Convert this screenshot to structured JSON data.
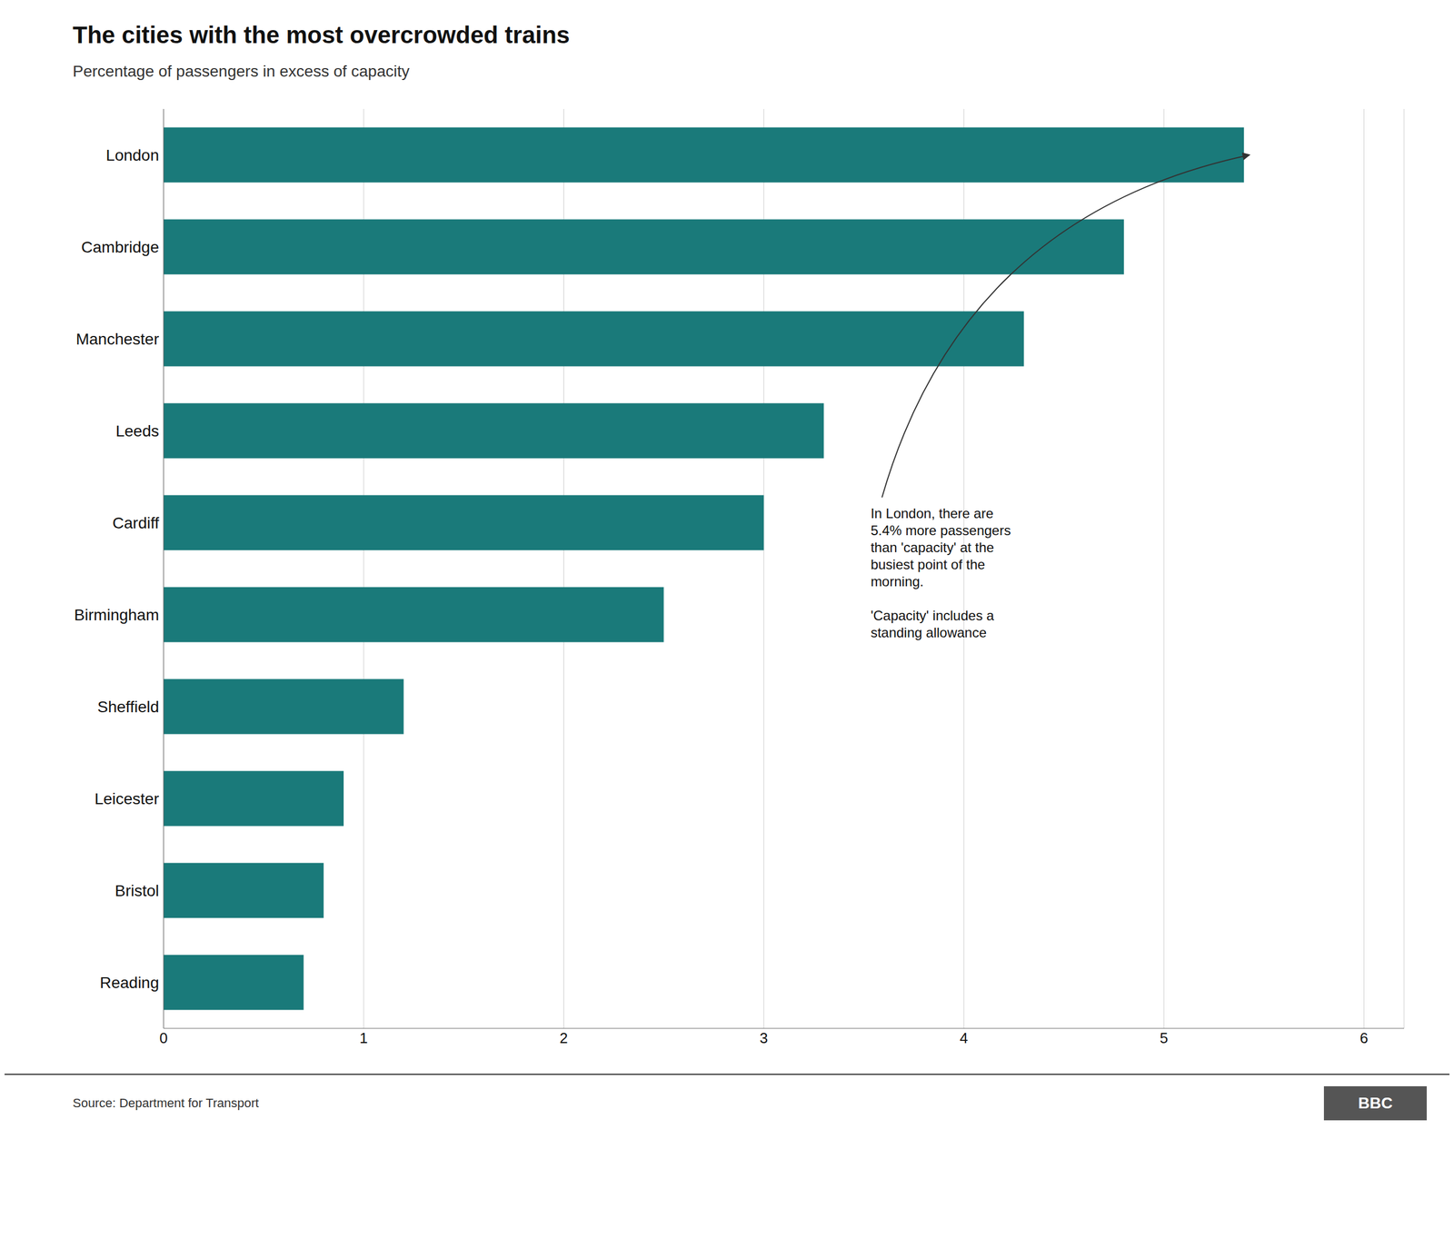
{
  "chart_data": {
    "type": "bar",
    "orientation": "horizontal",
    "title": "The cities with the most overcrowded trains",
    "subtitle": "Percentage of passengers in excess of capacity",
    "categories": [
      "London",
      "Cambridge",
      "Manchester",
      "Leeds",
      "Cardiff",
      "Birmingham",
      "Sheffield",
      "Leicester",
      "Bristol",
      "Reading"
    ],
    "values": [
      5.4,
      4.8,
      4.3,
      3.3,
      3.0,
      2.5,
      1.2,
      0.9,
      0.8,
      0.7
    ],
    "color": "#1a7a7a",
    "xlim": [
      0,
      6.2
    ],
    "xticks": [
      0,
      1,
      2,
      3,
      4,
      5,
      6
    ],
    "grid": true,
    "annotations": [
      "In London, there are\n5.4% more passengers\nthan 'capacity' at the\nbusiest point of the\nmorning.\n\n'Capacity' includes a\nstanding allowance"
    ],
    "source": "Source: Department for Transport",
    "logo": "BBC"
  }
}
